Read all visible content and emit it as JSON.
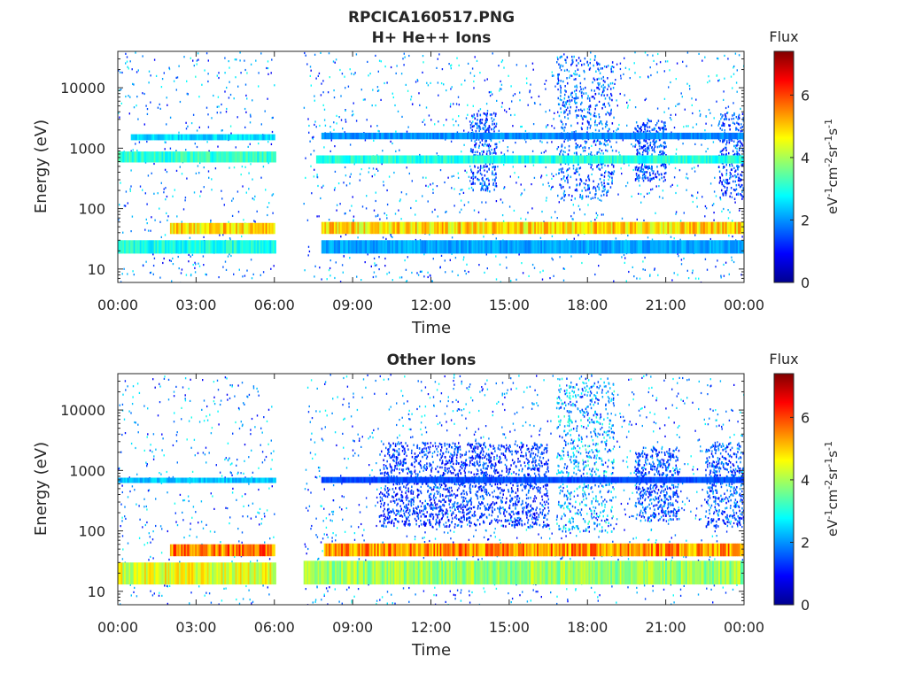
{
  "figure_title": "RPCICA160517.PNG",
  "colors": {
    "background": "#ffffff",
    "axis": "#262626",
    "colormap": [
      "#00008f",
      "#0000ff",
      "#0080ff",
      "#00ffff",
      "#80ff80",
      "#ffff00",
      "#ff8000",
      "#ff0000",
      "#800000"
    ]
  },
  "chart_data": [
    {
      "type": "heatmap",
      "title": "H+ He++ Ions",
      "xlabel": "Time",
      "ylabel": "Energy (eV)",
      "x_ticks": [
        "00:00",
        "03:00",
        "06:00",
        "09:00",
        "12:00",
        "15:00",
        "18:00",
        "21:00",
        "00:00"
      ],
      "x_range_hours": [
        0,
        24
      ],
      "y_scale": "log",
      "y_ticks": [
        10,
        100,
        1000,
        10000
      ],
      "y_tick_labels": [
        "10",
        "100",
        "1000",
        "10000"
      ],
      "y_range": [
        6,
        40000
      ],
      "colorbar": {
        "label": "Flux",
        "unit": "eV",
        "unit_exp": "-1",
        "unit_b": "cm",
        "unit_b_exp": "-2",
        "unit_c": "sr",
        "unit_c_exp": "-1",
        "unit_d": "s",
        "unit_d_exp": "-1",
        "range": [
          0,
          7.4
        ],
        "ticks": [
          0,
          2,
          4,
          6
        ],
        "tick_labels": [
          "0",
          "2",
          "4",
          "6"
        ]
      },
      "data_gap_hours": [
        6.0,
        7.1
      ],
      "bands": [
        {
          "t_start": 2.0,
          "t_end": 6.0,
          "e_low": 38,
          "e_high": 58,
          "flux": 5.0
        },
        {
          "t_start": 7.8,
          "t_end": 24.0,
          "e_low": 38,
          "e_high": 60,
          "flux": 5.0
        },
        {
          "t_start": 0.0,
          "t_end": 6.0,
          "e_low": 18,
          "e_high": 30,
          "flux": 3.0
        },
        {
          "t_start": 7.8,
          "t_end": 24.0,
          "e_low": 18,
          "e_high": 30,
          "flux": 2.2
        },
        {
          "t_start": 0.0,
          "t_end": 6.0,
          "e_low": 580,
          "e_high": 880,
          "flux": 3.2
        },
        {
          "t_start": 7.6,
          "t_end": 24.0,
          "e_low": 560,
          "e_high": 760,
          "flux": 3.1
        },
        {
          "t_start": 0.5,
          "t_end": 6.0,
          "e_low": 1350,
          "e_high": 1700,
          "flux": 2.6
        },
        {
          "t_start": 7.8,
          "t_end": 24.0,
          "e_low": 1400,
          "e_high": 1800,
          "flux": 2.0
        }
      ],
      "enhancements": [
        {
          "t_start": 16.8,
          "t_end": 19.0,
          "e_low": 150,
          "e_high": 35000,
          "flux": 1.6
        },
        {
          "t_start": 13.5,
          "t_end": 14.5,
          "e_low": 200,
          "e_high": 4000,
          "flux": 1.5
        },
        {
          "t_start": 19.8,
          "t_end": 21.0,
          "e_low": 300,
          "e_high": 3000,
          "flux": 1.4
        },
        {
          "t_start": 23.0,
          "t_end": 24.0,
          "e_low": 150,
          "e_high": 4000,
          "flux": 1.4
        }
      ]
    },
    {
      "type": "heatmap",
      "title": "Other Ions",
      "xlabel": "Time",
      "ylabel": "Energy (eV)",
      "x_ticks": [
        "00:00",
        "03:00",
        "06:00",
        "09:00",
        "12:00",
        "15:00",
        "18:00",
        "21:00",
        "00:00"
      ],
      "x_range_hours": [
        0,
        24
      ],
      "y_scale": "log",
      "y_ticks": [
        10,
        100,
        1000,
        10000
      ],
      "y_tick_labels": [
        "10",
        "100",
        "1000",
        "10000"
      ],
      "y_range": [
        6,
        40000
      ],
      "colorbar": {
        "label": "Flux",
        "unit": "eV",
        "unit_exp": "-1",
        "unit_b": "cm",
        "unit_b_exp": "-2",
        "unit_c": "sr",
        "unit_c_exp": "-1",
        "unit_d": "s",
        "unit_d_exp": "-1",
        "range": [
          0,
          7.4
        ],
        "ticks": [
          0,
          2,
          4,
          6
        ],
        "tick_labels": [
          "0",
          "2",
          "4",
          "6"
        ]
      },
      "data_gap_hours": [
        6.0,
        7.1
      ],
      "bands": [
        {
          "t_start": 2.0,
          "t_end": 6.0,
          "e_low": 38,
          "e_high": 60,
          "flux": 5.8
        },
        {
          "t_start": 7.9,
          "t_end": 24.0,
          "e_low": 38,
          "e_high": 62,
          "flux": 5.6
        },
        {
          "t_start": 0.0,
          "t_end": 6.0,
          "e_low": 13,
          "e_high": 30,
          "flux": 4.6
        },
        {
          "t_start": 7.0,
          "t_end": 24.0,
          "e_low": 13,
          "e_high": 32,
          "flux": 4.0
        },
        {
          "t_start": 0.0,
          "t_end": 6.0,
          "e_low": 620,
          "e_high": 760,
          "flux": 2.4
        },
        {
          "t_start": 7.8,
          "t_end": 24.0,
          "e_low": 620,
          "e_high": 780,
          "flux": 1.5
        }
      ],
      "enhancements": [
        {
          "t_start": 16.8,
          "t_end": 19.0,
          "e_low": 100,
          "e_high": 35000,
          "flux": 2.2
        },
        {
          "t_start": 10.0,
          "t_end": 16.5,
          "e_low": 120,
          "e_high": 3000,
          "flux": 1.3
        },
        {
          "t_start": 19.8,
          "t_end": 21.5,
          "e_low": 150,
          "e_high": 2500,
          "flux": 1.5
        },
        {
          "t_start": 22.5,
          "t_end": 24.0,
          "e_low": 120,
          "e_high": 3000,
          "flux": 1.5
        }
      ]
    }
  ]
}
